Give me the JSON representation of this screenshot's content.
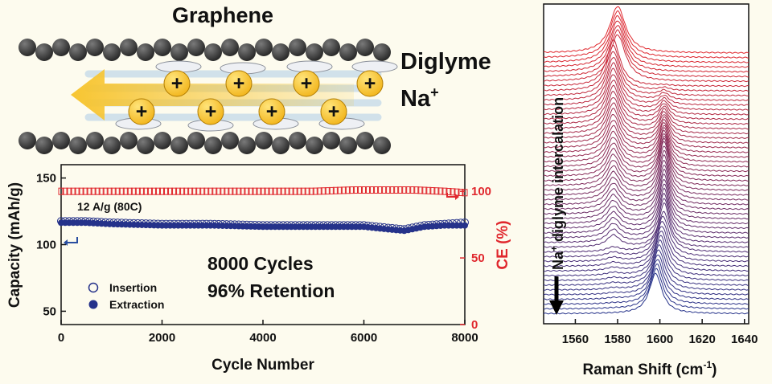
{
  "schematic": {
    "title": "Graphene",
    "label_solvent": "Diglyme",
    "label_ion": "Na",
    "label_ion_charge": "+",
    "ion_symbol": "+",
    "colors": {
      "layer": "#2a2a2a",
      "ion": "#f2b51c",
      "arrow": "#f7c531",
      "flow": "#9ec3e6"
    }
  },
  "chart_data": [
    {
      "type": "scatter",
      "title": "",
      "xlabel": "Cycle Number",
      "ylabel": "Capacity (mAh/g)",
      "ylabel_right": "CE (%)",
      "xlim": [
        0,
        8000
      ],
      "ylim": [
        40,
        160
      ],
      "ylim_right": [
        0,
        120
      ],
      "xticks": [
        "0",
        "2000",
        "4000",
        "6000",
        "8000"
      ],
      "yticks": [
        "50",
        "100",
        "150"
      ],
      "yticks_right": [
        "0",
        "50",
        "100"
      ],
      "annotations": [
        "12 A/g (80C)",
        "8000 Cycles",
        "96% Retention"
      ],
      "legend": {
        "position": "bottom-left"
      },
      "series": [
        {
          "name": "Insertion",
          "axis": "left",
          "color": "#25328a",
          "marker": "open-circle",
          "x": [
            0,
            500,
            1000,
            2000,
            3000,
            4000,
            5000,
            6000,
            6500,
            6800,
            7200,
            7600,
            8000
          ],
          "values": [
            117,
            117,
            116,
            115,
            115,
            114,
            114,
            114,
            112,
            111,
            114,
            115,
            116
          ]
        },
        {
          "name": "Extraction",
          "axis": "left",
          "color": "#25328a",
          "marker": "filled-circle",
          "x": [
            0,
            500,
            1000,
            2000,
            3000,
            4000,
            5000,
            6000,
            6500,
            6800,
            7200,
            7600,
            8000
          ],
          "values": [
            117,
            117,
            116,
            115,
            115,
            114,
            114,
            114,
            112,
            111,
            114,
            115,
            115
          ]
        },
        {
          "name": "CE",
          "axis": "right",
          "color": "#e0272d",
          "marker": "open-square",
          "x": [
            0,
            1000,
            2000,
            3000,
            4000,
            5000,
            5800,
            6500,
            7000,
            7600,
            8000
          ],
          "values": [
            100,
            100,
            100,
            100,
            100,
            100,
            101,
            101,
            101,
            100,
            99
          ]
        }
      ]
    },
    {
      "type": "line",
      "title": "",
      "xlabel": "Raman Shift (cm",
      "xlabel_sup": "-1",
      "xlabel_end": ")",
      "xlim": [
        1545,
        1642
      ],
      "xticks": [
        "1560",
        "1580",
        "1600",
        "1620",
        "1640"
      ],
      "annotation": "Na",
      "annotation_sup": "+",
      "annotation_rest": " diglyme  intercalation",
      "color_start": "#e0272d",
      "color_end": "#25328a",
      "series_count": 56,
      "peaks": {
        "single_peak": 1580,
        "doublet_low": 1578,
        "doublet_high": 1602,
        "stage2_peak": 1598
      }
    }
  ]
}
